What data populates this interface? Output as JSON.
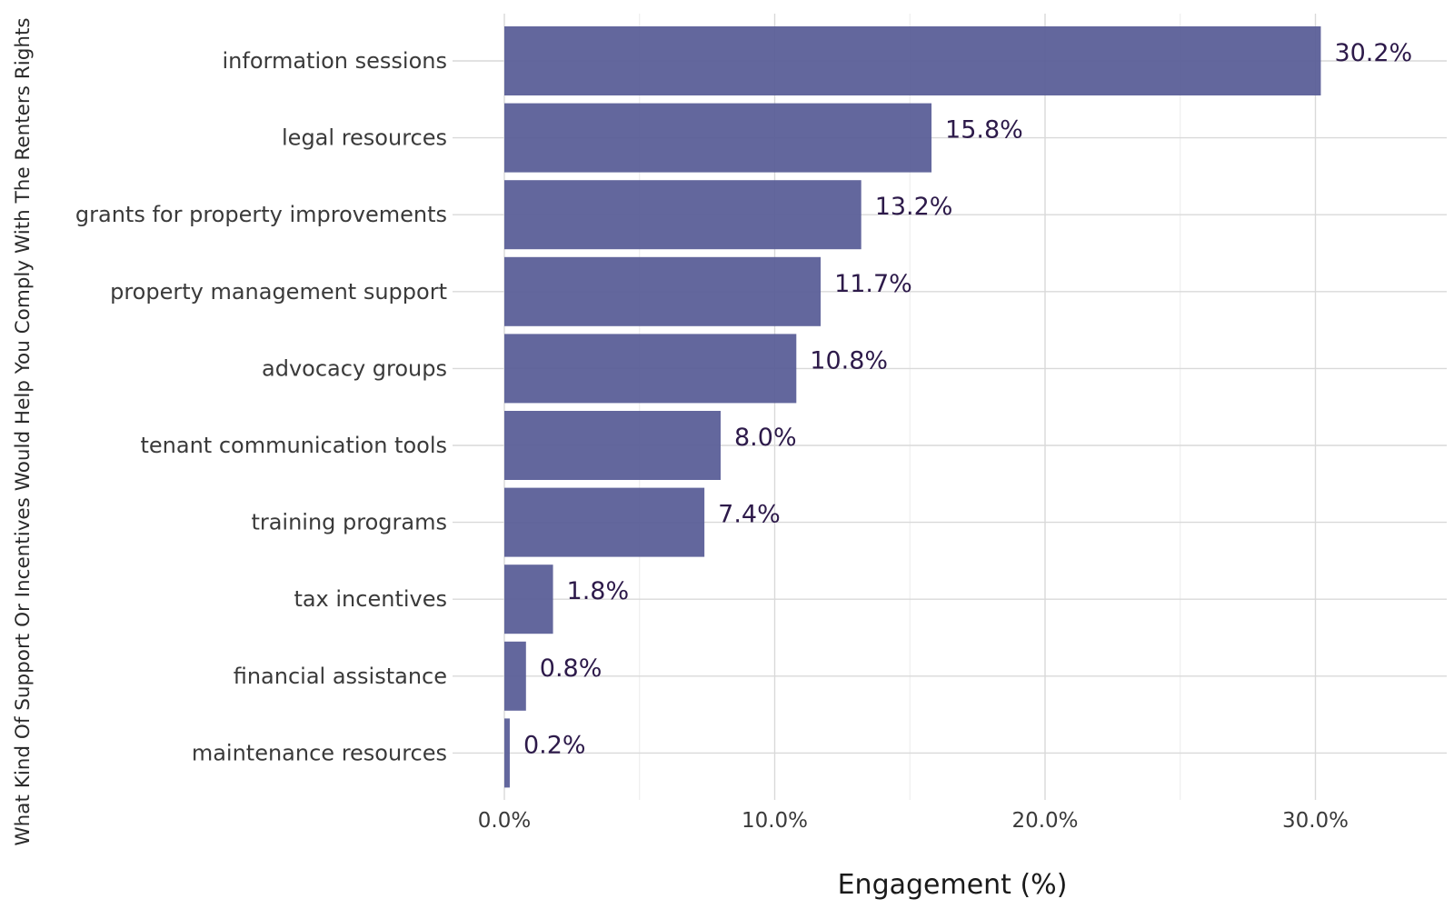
{
  "chart_data": {
    "type": "bar",
    "orientation": "horizontal",
    "categories": [
      "information sessions",
      "legal resources",
      "grants for property improvements",
      "property management support",
      "advocacy groups",
      "tenant communication tools",
      "training programs",
      "tax incentives",
      "financial assistance",
      "maintenance resources"
    ],
    "values": [
      30.2,
      15.8,
      13.2,
      11.7,
      10.8,
      8.0,
      7.4,
      1.8,
      0.8,
      0.2
    ],
    "value_labels": [
      "30.2%",
      "15.8%",
      "13.2%",
      "11.7%",
      "10.8%",
      "8.0%",
      "7.4%",
      "1.8%",
      "0.8%",
      "0.2%"
    ],
    "xlabel": "Engagement (%)",
    "ylabel": "What Kind Of Support Or Incentives Would Help You Comply With The Renters Rights",
    "xlim": [
      0,
      35
    ],
    "x_ticks": [
      0,
      10,
      20,
      30
    ],
    "x_tick_labels": [
      "0.0%",
      "10.0%",
      "20.0%",
      "30.0%"
    ],
    "grid": true,
    "bar_color": "#5b5f98",
    "label_color": "#2d1a4a"
  }
}
